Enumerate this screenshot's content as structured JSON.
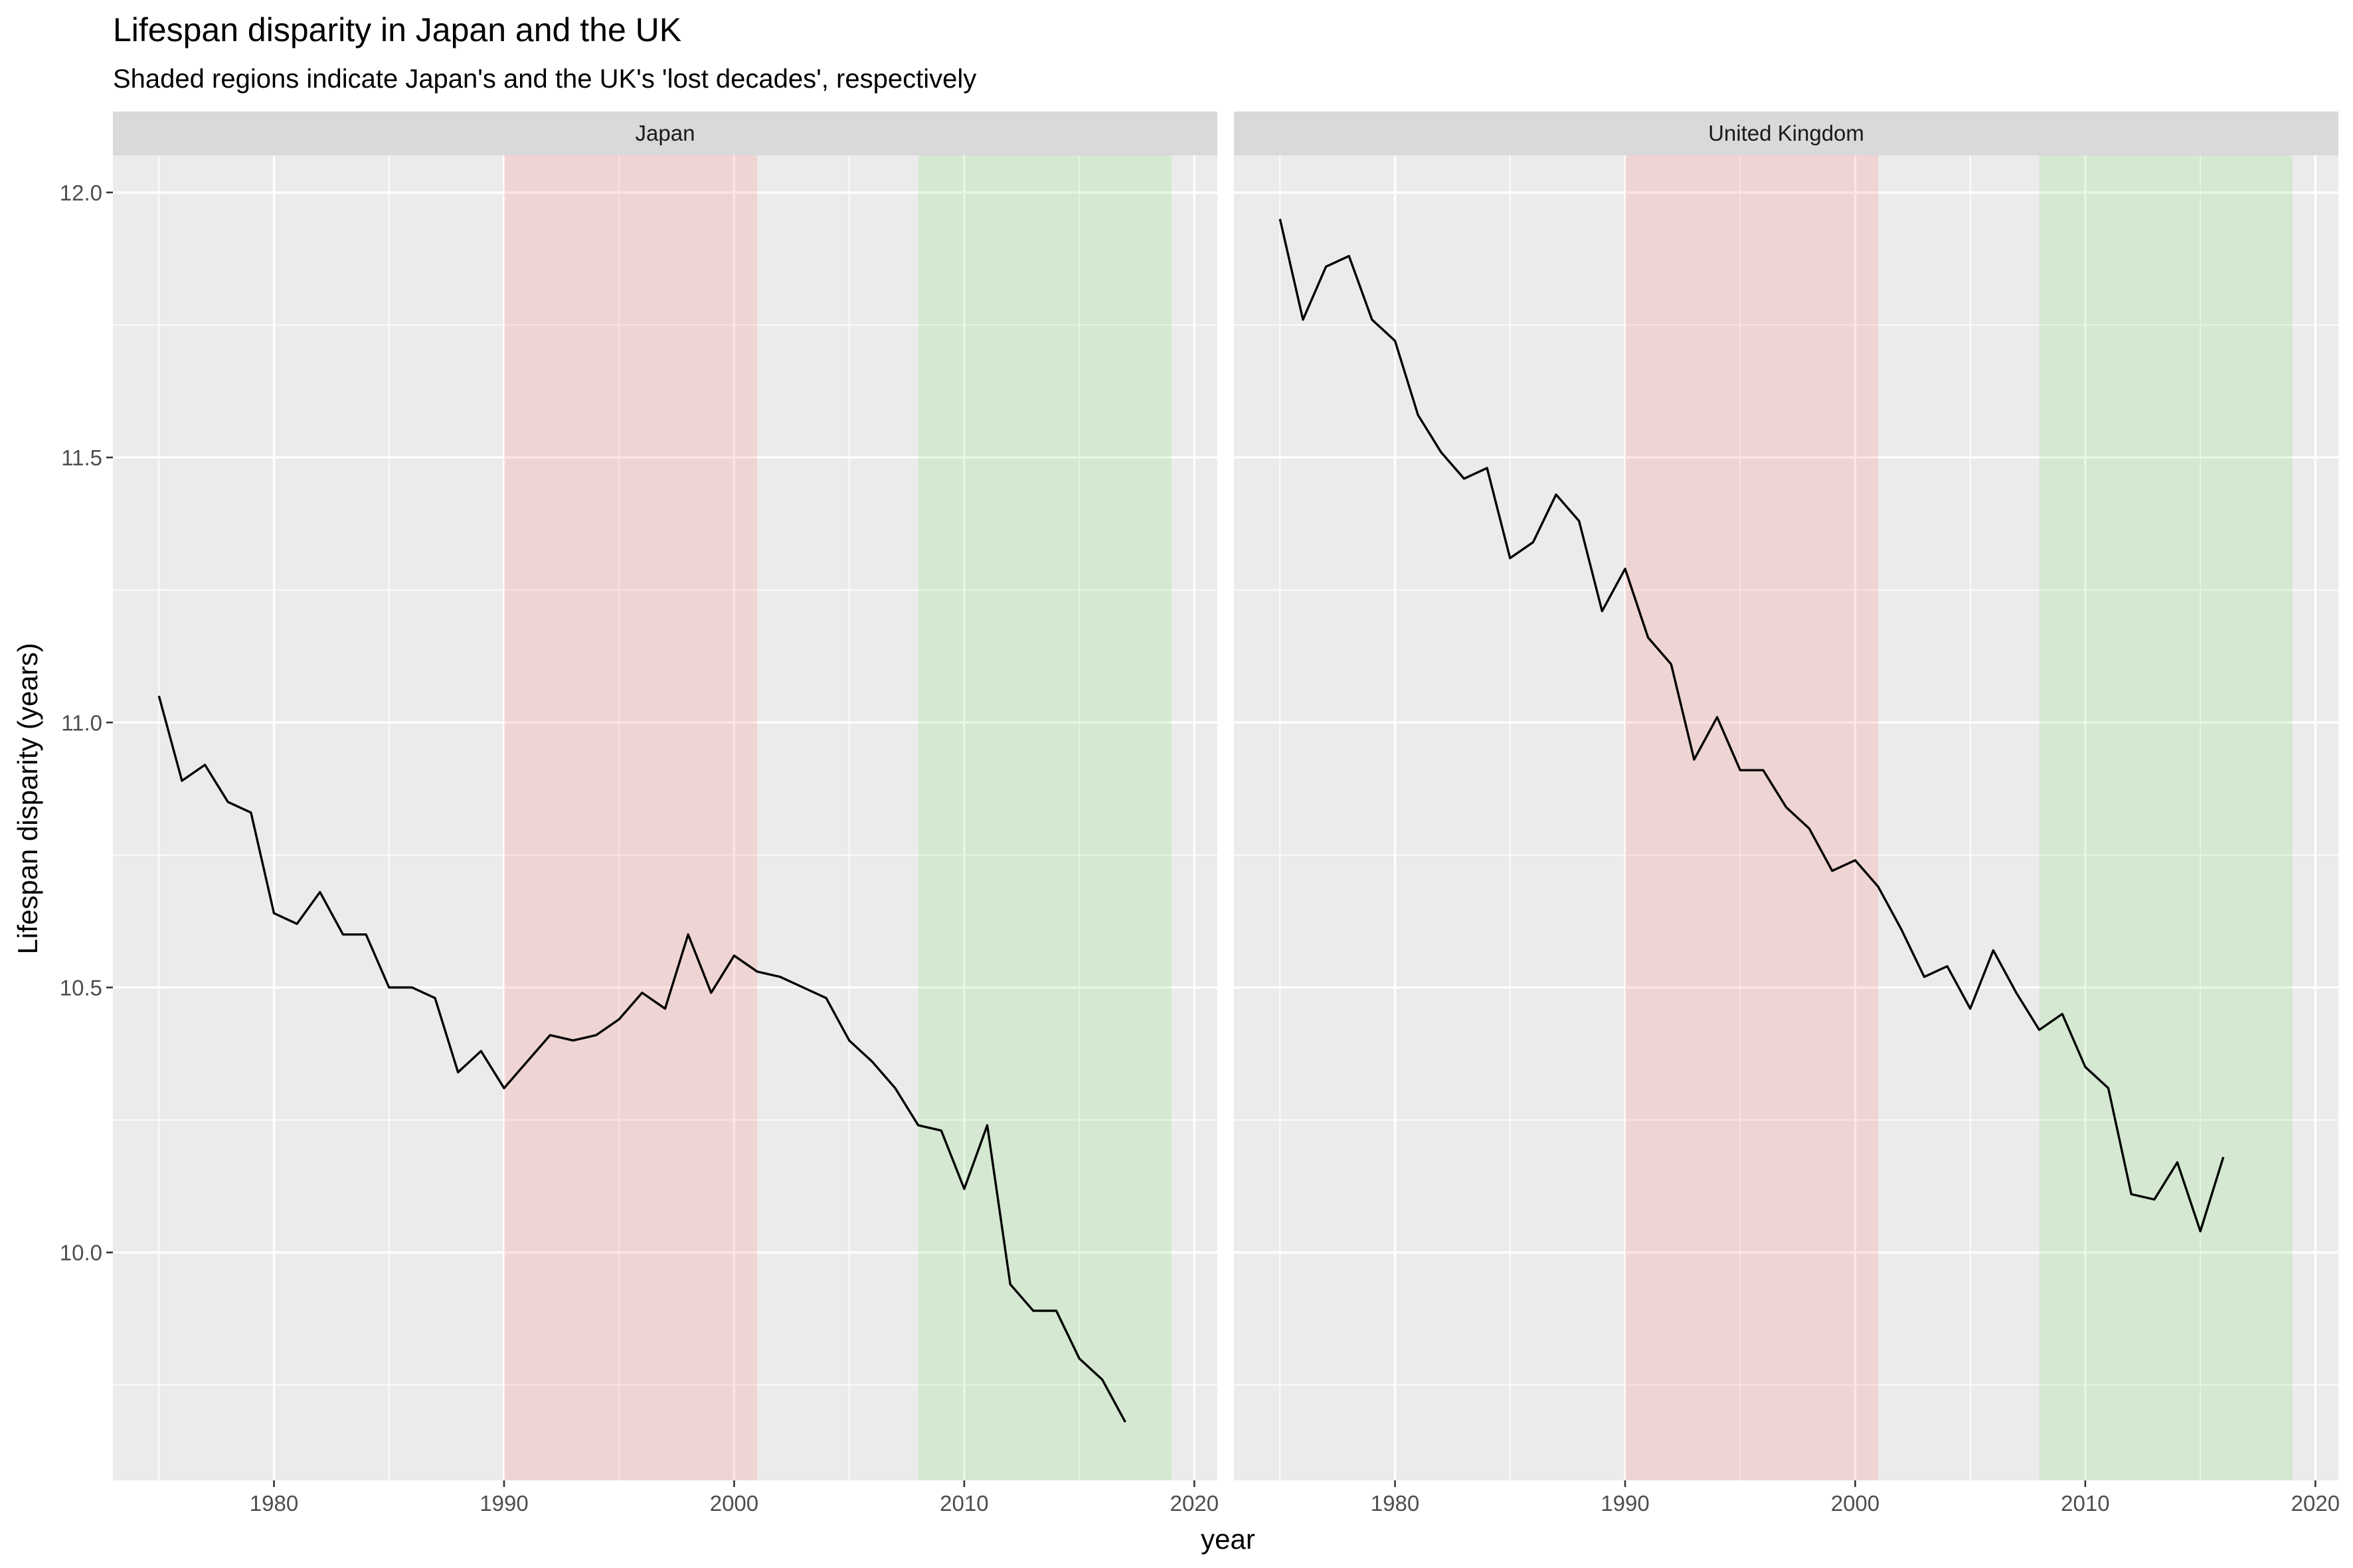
{
  "title": "Lifespan disparity in Japan and the UK",
  "subtitle": "Shaded regions indicate Japan's and the UK's 'lost decades', respectively",
  "chart_data": {
    "type": "line",
    "title": "Lifespan disparity in Japan and the UK",
    "subtitle": "Shaded regions indicate Japan's and the UK's 'lost decades', respectively",
    "xlabel": "year",
    "ylabel": "Lifespan disparity (years)",
    "xlim": [
      1973,
      2021
    ],
    "ylim": [
      9.57,
      12.07
    ],
    "x_ticks": [
      1980,
      1990,
      2000,
      2010,
      2020
    ],
    "x_tick_labels": [
      "1980",
      "1990",
      "2000",
      "2010",
      "2020"
    ],
    "y_ticks": [
      10.0,
      10.5,
      11.0,
      11.5,
      12.0
    ],
    "y_tick_labels": [
      "10.0",
      "10.5",
      "11.0",
      "11.5",
      "12.0"
    ],
    "grid": true,
    "shaded_regions": [
      {
        "from": 1990,
        "to": 2001,
        "color": "#f8766d"
      },
      {
        "from": 2008,
        "to": 2019,
        "color": "#7cdc6c"
      }
    ],
    "line_color": "#000000",
    "panels": [
      {
        "name": "Japan",
        "x": [
          1975,
          1976,
          1977,
          1978,
          1979,
          1980,
          1981,
          1982,
          1983,
          1984,
          1985,
          1986,
          1987,
          1988,
          1989,
          1990,
          1991,
          1992,
          1993,
          1994,
          1995,
          1996,
          1997,
          1998,
          1999,
          2000,
          2001,
          2002,
          2003,
          2004,
          2005,
          2006,
          2007,
          2008,
          2009,
          2010,
          2011,
          2012,
          2013,
          2014,
          2015,
          2016,
          2017
        ],
        "y": [
          11.05,
          10.89,
          10.92,
          10.85,
          10.83,
          10.64,
          10.62,
          10.68,
          10.6,
          10.6,
          10.5,
          10.5,
          10.48,
          10.34,
          10.38,
          10.31,
          10.36,
          10.41,
          10.4,
          10.41,
          10.44,
          10.49,
          10.46,
          10.6,
          10.49,
          10.56,
          10.53,
          10.52,
          10.5,
          10.48,
          10.4,
          10.36,
          10.31,
          10.24,
          10.23,
          10.12,
          10.24,
          9.94,
          9.89,
          9.89,
          9.8,
          9.76,
          9.68
        ]
      },
      {
        "name": "United Kingdom",
        "x": [
          1975,
          1976,
          1977,
          1978,
          1979,
          1980,
          1981,
          1982,
          1983,
          1984,
          1985,
          1986,
          1987,
          1988,
          1989,
          1990,
          1991,
          1992,
          1993,
          1994,
          1995,
          1996,
          1997,
          1998,
          1999,
          2000,
          2001,
          2002,
          2003,
          2004,
          2005,
          2006,
          2007,
          2008,
          2009,
          2010,
          2011,
          2012,
          2013,
          2014,
          2015,
          2016
        ],
        "y": [
          11.95,
          11.76,
          11.86,
          11.88,
          11.76,
          11.72,
          11.58,
          11.51,
          11.46,
          11.48,
          11.31,
          11.34,
          11.43,
          11.38,
          11.21,
          11.29,
          11.16,
          11.11,
          10.93,
          11.01,
          10.91,
          10.91,
          10.84,
          10.8,
          10.72,
          10.74,
          10.69,
          10.61,
          10.52,
          10.54,
          10.46,
          10.57,
          10.49,
          10.42,
          10.45,
          10.35,
          10.31,
          10.11,
          10.1,
          10.17,
          10.04,
          10.18
        ]
      }
    ]
  }
}
